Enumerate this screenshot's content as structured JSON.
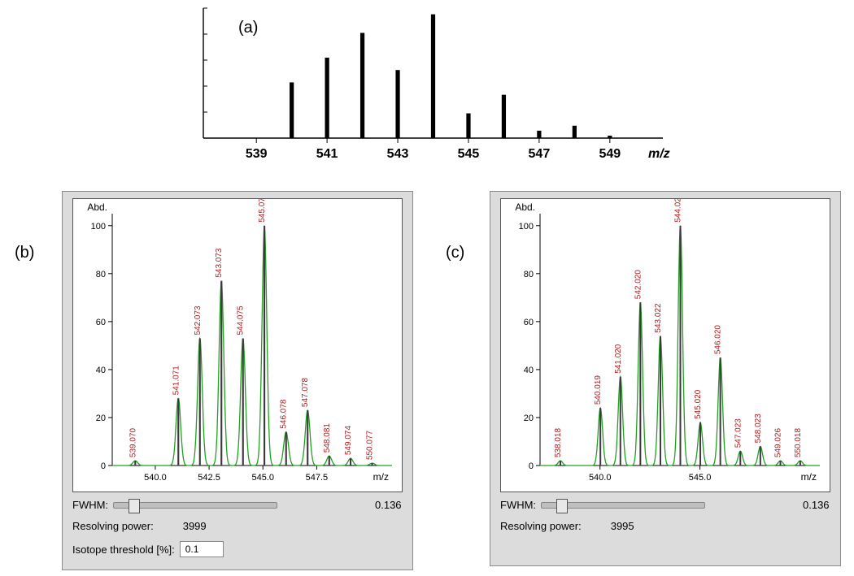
{
  "figure_labels": {
    "a": "(a)",
    "b": "(b)",
    "c": "(c)"
  },
  "top_spectrum": {
    "type": "bar",
    "x_axis_label": "m/z",
    "x_ticks": [
      539,
      541,
      543,
      545,
      547,
      549
    ],
    "x_range": [
      537.5,
      550.5
    ],
    "y_range": [
      0,
      105
    ],
    "bar_color": "#000000",
    "tick_color": "#000000",
    "axis_color": "#000000",
    "background_color": "#ffffff",
    "tick_fontsize": 16,
    "bar_halfwidth_mz": 0.06,
    "peaks": [
      {
        "mz": 540.0,
        "h": 45
      },
      {
        "mz": 541.0,
        "h": 65
      },
      {
        "mz": 542.0,
        "h": 85
      },
      {
        "mz": 543.0,
        "h": 55
      },
      {
        "mz": 544.0,
        "h": 100
      },
      {
        "mz": 545.0,
        "h": 20
      },
      {
        "mz": 546.0,
        "h": 35
      },
      {
        "mz": 547.0,
        "h": 6
      },
      {
        "mz": 548.0,
        "h": 10
      },
      {
        "mz": 549.0,
        "h": 2
      }
    ]
  },
  "panel_b": {
    "type": "mass_spectrum",
    "y_label": "Abd.",
    "x_label": "m/z",
    "x_range": [
      538.0,
      551.0
    ],
    "y_range": [
      0,
      105
    ],
    "x_ticks": [
      540.0,
      542.5,
      545.0,
      547.5
    ],
    "y_ticks": [
      0,
      20,
      40,
      60,
      80,
      100
    ],
    "axis_color": "#000000",
    "tick_fontsize": 11,
    "label_fontsize": 12,
    "peak_label_fontsize": 10,
    "peak_label_color": "#b11a1a",
    "stick_color": "#3a3a3a",
    "profile_color": "#22a022",
    "profile_stroke": 1.3,
    "stick_halfwidth_mz": 0.04,
    "gaussian_sigma_mz": 0.11,
    "background_color": "#ffffff",
    "peaks": [
      {
        "mz": 539.07,
        "h": 2,
        "label": "539.070"
      },
      {
        "mz": 541.071,
        "h": 28,
        "label": "541.071"
      },
      {
        "mz": 542.073,
        "h": 53,
        "label": "542.073"
      },
      {
        "mz": 543.073,
        "h": 77,
        "label": "543.073"
      },
      {
        "mz": 544.075,
        "h": 53,
        "label": "544.075"
      },
      {
        "mz": 545.07,
        "h": 100,
        "label": "545.07"
      },
      {
        "mz": 546.078,
        "h": 14,
        "label": "546.078"
      },
      {
        "mz": 547.078,
        "h": 23,
        "label": "547.078"
      },
      {
        "mz": 548.081,
        "h": 4,
        "label": "548.081"
      },
      {
        "mz": 549.074,
        "h": 3,
        "label": "549.074"
      },
      {
        "mz": 550.077,
        "h": 1,
        "label": "550.077"
      }
    ],
    "controls": {
      "fwhm_label": "FWHM:",
      "fwhm_value": "0.136",
      "fwhm_slider_pos": 0.12,
      "rp_label": "Resolving power:",
      "rp_value": "3999",
      "iso_label": "Isotope threshold [%]:",
      "iso_value": "0.1"
    }
  },
  "panel_c": {
    "type": "mass_spectrum",
    "y_label": "Abd.",
    "x_label": "m/z",
    "x_range": [
      537.0,
      551.0
    ],
    "y_range": [
      0,
      105
    ],
    "x_ticks": [
      540.0,
      545.0
    ],
    "y_ticks": [
      0,
      20,
      40,
      60,
      80,
      100
    ],
    "axis_color": "#000000",
    "tick_fontsize": 11,
    "label_fontsize": 12,
    "peak_label_fontsize": 10,
    "peak_label_color": "#b11a1a",
    "stick_color": "#3a3a3a",
    "profile_color": "#22a022",
    "profile_stroke": 1.3,
    "stick_halfwidth_mz": 0.04,
    "gaussian_sigma_mz": 0.11,
    "background_color": "#ffffff",
    "peaks": [
      {
        "mz": 538.018,
        "h": 2,
        "label": "538.018"
      },
      {
        "mz": 540.019,
        "h": 24,
        "label": "540.019"
      },
      {
        "mz": 541.02,
        "h": 37,
        "label": "541.020"
      },
      {
        "mz": 542.02,
        "h": 68,
        "label": "542.020"
      },
      {
        "mz": 543.022,
        "h": 54,
        "label": "543.022"
      },
      {
        "mz": 544.02,
        "h": 100,
        "label": "544.02"
      },
      {
        "mz": 545.02,
        "h": 18,
        "label": "545.020"
      },
      {
        "mz": 546.02,
        "h": 45,
        "label": "546.020"
      },
      {
        "mz": 547.023,
        "h": 6,
        "label": "547.023"
      },
      {
        "mz": 548.023,
        "h": 8,
        "label": "548.023"
      },
      {
        "mz": 549.026,
        "h": 2,
        "label": "549.026"
      },
      {
        "mz": 550.018,
        "h": 2,
        "label": "550.018"
      }
    ],
    "controls": {
      "fwhm_label": "FWHM:",
      "fwhm_value": "0.136",
      "fwhm_slider_pos": 0.12,
      "rp_label": "Resolving power:",
      "rp_value": "3995"
    }
  }
}
